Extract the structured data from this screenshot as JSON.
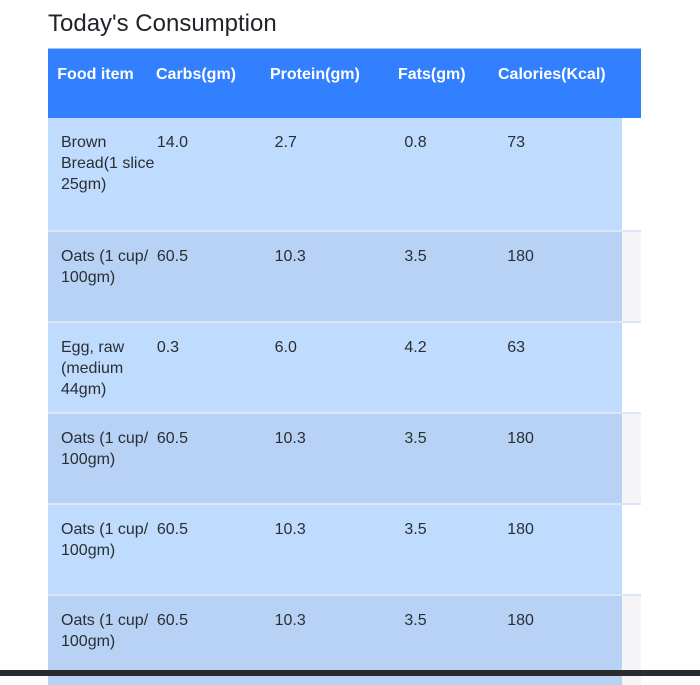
{
  "page": {
    "title": "Today's Consumption"
  },
  "table": {
    "columns": [
      "Food item",
      "Carbs(gm)",
      "Protein(gm)",
      "Fats(gm)",
      "Calories(Kcal)"
    ],
    "rows": [
      {
        "food": "Brown Bread(1 slice 25gm)",
        "carbs": "14.0",
        "protein": "2.7",
        "fats": "0.8",
        "calories": "73"
      },
      {
        "food": "Oats (1 cup/ 100gm)",
        "carbs": "60.5",
        "protein": "10.3",
        "fats": "3.5",
        "calories": "180"
      },
      {
        "food": "Egg, raw (medium 44gm)",
        "carbs": "0.3",
        "protein": "6.0",
        "fats": "4.2",
        "calories": "63"
      },
      {
        "food": "Oats (1 cup/ 100gm)",
        "carbs": "60.5",
        "protein": "10.3",
        "fats": "3.5",
        "calories": "180"
      },
      {
        "food": "Oats (1 cup/ 100gm)",
        "carbs": "60.5",
        "protein": "10.3",
        "fats": "3.5",
        "calories": "180"
      },
      {
        "food": "Oats (1 cup/ 100gm)",
        "carbs": "60.5",
        "protein": "10.3",
        "fats": "3.5",
        "calories": "180"
      }
    ]
  },
  "colors": {
    "header_bg": "#3380ff",
    "row_odd": "#bfdbfe",
    "row_even": "#b8d2f5"
  }
}
